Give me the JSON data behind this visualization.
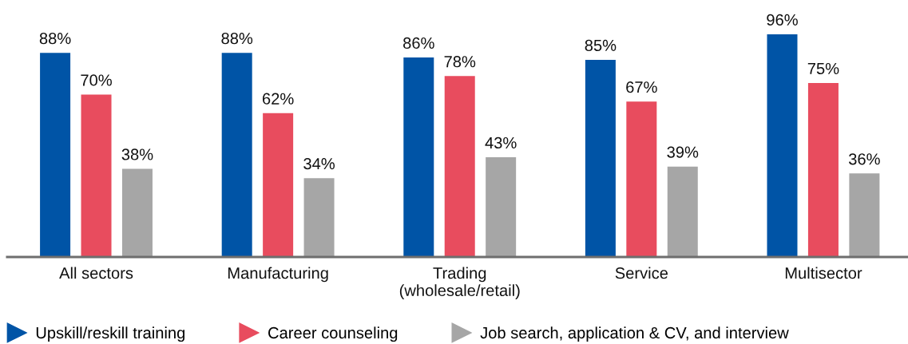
{
  "chart_data": {
    "type": "bar",
    "categories": [
      "All sectors",
      "Manufacturing",
      "Trading\n(wholesale/retail)",
      "Service",
      "Multisector"
    ],
    "series": [
      {
        "name": "Upskill/reskill training",
        "color": "#0054a6",
        "values": [
          88,
          88,
          86,
          85,
          96
        ],
        "value_labels": [
          "88%",
          "88%",
          "86%",
          "85%",
          "96%"
        ]
      },
      {
        "name": "Career counseling",
        "color": "#e84c5e",
        "values": [
          70,
          62,
          78,
          67,
          75
        ],
        "value_labels": [
          "70%",
          "62%",
          "78%",
          "67%",
          "75%"
        ]
      },
      {
        "name": "Job search, application & CV, and interview",
        "color": "#a6a6a6",
        "values": [
          38,
          34,
          43,
          39,
          36
        ],
        "value_labels": [
          "38%",
          "34%",
          "43%",
          "39%",
          "36%"
        ]
      }
    ],
    "tick_labels": "x",
    "legend": "bottom"
  }
}
